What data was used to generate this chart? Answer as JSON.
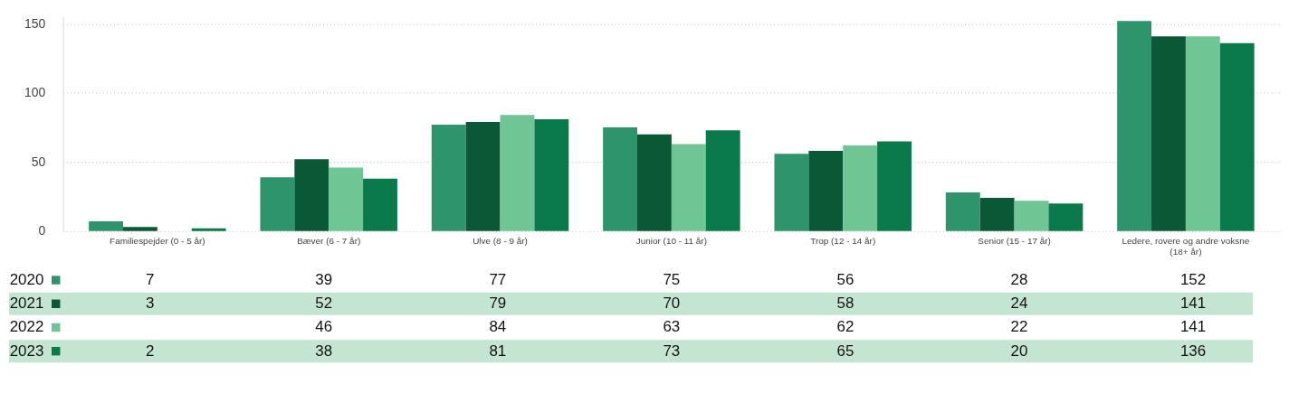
{
  "chart_data": {
    "type": "bar",
    "categories": [
      "Familiespejder (0 - 5 år)",
      "Bæver (6 - 7 år)",
      "Ulve (8 - 9 år)",
      "Junior (10 - 11 år)",
      "Trop (12 - 14 år)",
      "Senior (15 - 17 år)",
      "Ledere, rovere og andre voksne (18+ år)"
    ],
    "series": [
      {
        "name": "2020",
        "color": "#2e946b",
        "values": [
          7,
          39,
          77,
          75,
          56,
          28,
          152
        ]
      },
      {
        "name": "2021",
        "color": "#0b5837",
        "values": [
          3,
          52,
          79,
          70,
          58,
          24,
          141
        ]
      },
      {
        "name": "2022",
        "color": "#6fc694",
        "values": [
          null,
          46,
          84,
          63,
          62,
          22,
          141
        ]
      },
      {
        "name": "2023",
        "color": "#0a7a4a",
        "values": [
          2,
          38,
          81,
          73,
          65,
          20,
          136
        ]
      }
    ],
    "ylim": [
      0,
      155
    ],
    "yticks": [
      0,
      50,
      100,
      150
    ],
    "grid": "y",
    "legend": "bottom left",
    "data_labels": true
  }
}
